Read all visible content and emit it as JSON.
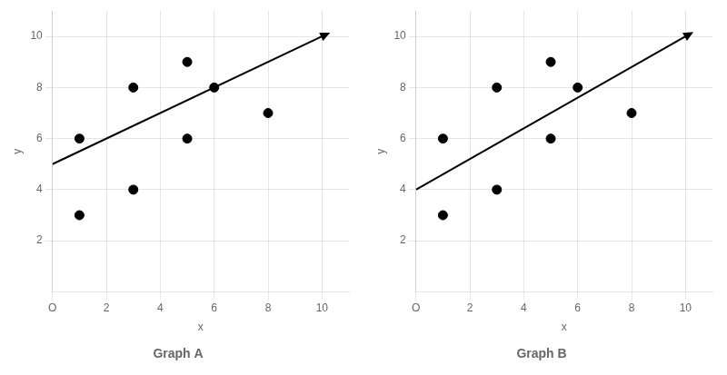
{
  "chart_data": [
    {
      "type": "scatter",
      "title": "Graph A",
      "x_label": "x",
      "y_label": "y",
      "series": [
        {
          "type": "scatter",
          "color": "#000000",
          "x": [
            1,
            1,
            3,
            3,
            5,
            5,
            6,
            8
          ],
          "values": [
            3,
            6,
            4,
            8,
            6,
            9,
            8,
            7
          ]
        },
        {
          "type": "line",
          "color": "#000000",
          "x": [
            0,
            10.1
          ],
          "values": [
            5,
            10.05
          ]
        }
      ],
      "xlim": [
        0,
        11
      ],
      "ylim": [
        0,
        11
      ],
      "xticks": [
        {
          "value": 0,
          "label": "O"
        },
        2,
        4,
        6,
        8,
        10
      ],
      "yticks": [
        2,
        4,
        6,
        8,
        10
      ],
      "grid": true
    },
    {
      "type": "scatter",
      "title": "Graph B",
      "x_label": "x",
      "y_label": "y",
      "series": [
        {
          "type": "scatter",
          "color": "#000000",
          "x": [
            1,
            1,
            3,
            3,
            5,
            5,
            6,
            8
          ],
          "values": [
            3,
            6,
            4,
            8,
            6,
            9,
            8,
            7
          ]
        },
        {
          "type": "line",
          "color": "#000000",
          "x": [
            0,
            10.1
          ],
          "values": [
            4,
            10.06
          ]
        }
      ],
      "xlim": [
        0,
        11
      ],
      "ylim": [
        0,
        11
      ],
      "xticks": [
        {
          "value": 0,
          "label": "O"
        },
        2,
        4,
        6,
        8,
        10
      ],
      "yticks": [
        2,
        4,
        6,
        8,
        10
      ],
      "grid": true
    }
  ]
}
